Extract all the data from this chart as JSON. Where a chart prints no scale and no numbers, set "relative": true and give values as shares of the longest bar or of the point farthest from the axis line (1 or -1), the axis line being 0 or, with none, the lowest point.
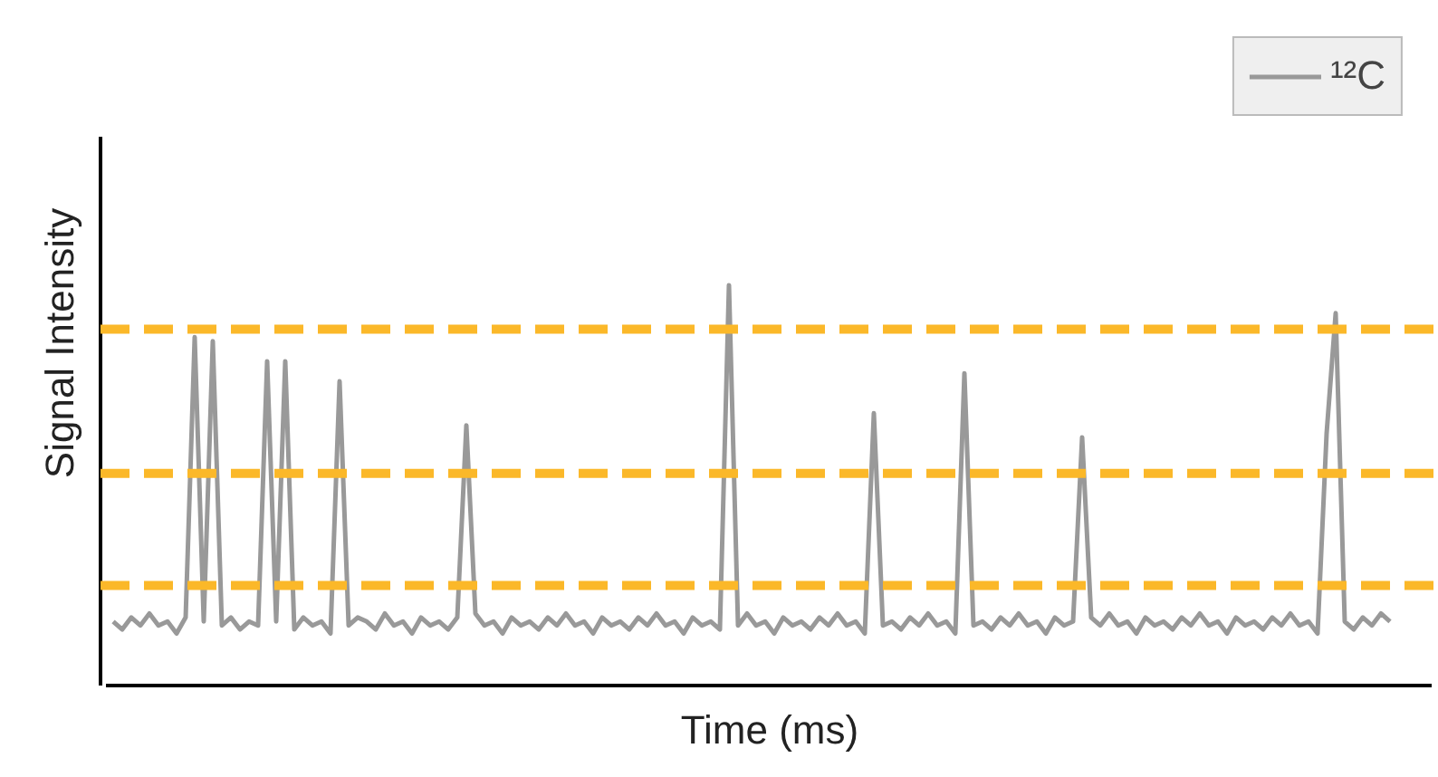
{
  "chart_data": {
    "type": "line",
    "relative": true,
    "xlabel": "Time (ms)",
    "ylabel": "Signal Intensity",
    "tick_labels": false,
    "legend": "top right",
    "grid": false,
    "marker": "none",
    "line_style": "solid",
    "categories": [
      null,
      null,
      null,
      null,
      null,
      null,
      null,
      null,
      null,
      null,
      null,
      null,
      null,
      null,
      null,
      null,
      null,
      null,
      null,
      null,
      null,
      null,
      null,
      null,
      null,
      null,
      null,
      null,
      null,
      null,
      null,
      null,
      null,
      null,
      null,
      null,
      null,
      null,
      null,
      null,
      null,
      null,
      null,
      null,
      null,
      null,
      null,
      null,
      null,
      null,
      null,
      null,
      null,
      null,
      null,
      null,
      null,
      null,
      null,
      null,
      null,
      null,
      null,
      null,
      null,
      null,
      null,
      null,
      null,
      null,
      null,
      null,
      null,
      null,
      null,
      null,
      null,
      null,
      null,
      null,
      null,
      null,
      null,
      null,
      null,
      null,
      null,
      null,
      null,
      null,
      null,
      null,
      null,
      null,
      null,
      null,
      null,
      null,
      null,
      null,
      null,
      null,
      null,
      null,
      null,
      null,
      null,
      null,
      null,
      null,
      null,
      null,
      null,
      null,
      null,
      null,
      null,
      null,
      null,
      null,
      null,
      null,
      null,
      null,
      null,
      null,
      null,
      null,
      null,
      null,
      null,
      null,
      null,
      null,
      null,
      null,
      null,
      null,
      null,
      null,
      null,
      null
    ],
    "series": [
      {
        "name": "¹²C",
        "color": "#999999",
        "values": [
          0.16,
          0.14,
          0.17,
          0.15,
          0.18,
          0.15,
          0.16,
          0.13,
          0.17,
          0.87,
          0.16,
          0.86,
          0.15,
          0.17,
          0.14,
          0.16,
          0.15,
          0.81,
          0.16,
          0.81,
          0.14,
          0.17,
          0.15,
          0.16,
          0.13,
          0.76,
          0.15,
          0.17,
          0.16,
          0.14,
          0.18,
          0.15,
          0.16,
          0.13,
          0.17,
          0.15,
          0.16,
          0.14,
          0.17,
          0.65,
          0.18,
          0.15,
          0.16,
          0.13,
          0.17,
          0.15,
          0.16,
          0.14,
          0.17,
          0.15,
          0.18,
          0.15,
          0.16,
          0.13,
          0.17,
          0.15,
          0.16,
          0.14,
          0.17,
          0.15,
          0.18,
          0.15,
          0.16,
          0.13,
          0.17,
          0.15,
          0.16,
          0.14,
          1.0,
          0.15,
          0.18,
          0.15,
          0.16,
          0.13,
          0.17,
          0.15,
          0.16,
          0.14,
          0.17,
          0.15,
          0.18,
          0.15,
          0.16,
          0.13,
          0.68,
          0.15,
          0.16,
          0.14,
          0.17,
          0.15,
          0.18,
          0.15,
          0.16,
          0.13,
          0.78,
          0.15,
          0.16,
          0.14,
          0.17,
          0.15,
          0.18,
          0.15,
          0.16,
          0.13,
          0.17,
          0.15,
          0.16,
          0.62,
          0.17,
          0.15,
          0.18,
          0.15,
          0.16,
          0.13,
          0.17,
          0.15,
          0.16,
          0.14,
          0.17,
          0.15,
          0.18,
          0.15,
          0.16,
          0.13,
          0.17,
          0.15,
          0.16,
          0.14,
          0.17,
          0.15,
          0.18,
          0.15,
          0.16,
          0.13,
          0.63,
          0.93,
          0.16,
          0.14,
          0.17,
          0.15,
          0.18,
          0.16
        ]
      }
    ],
    "ref_lines": [
      {
        "axis": "y",
        "value": 0.89,
        "color": "#fbb829",
        "line_style": "dashed"
      },
      {
        "axis": "y",
        "value": 0.53,
        "color": "#fbb829",
        "line_style": "dashed"
      },
      {
        "axis": "y",
        "value": 0.25,
        "color": "#fbb829",
        "line_style": "dashed"
      }
    ]
  }
}
